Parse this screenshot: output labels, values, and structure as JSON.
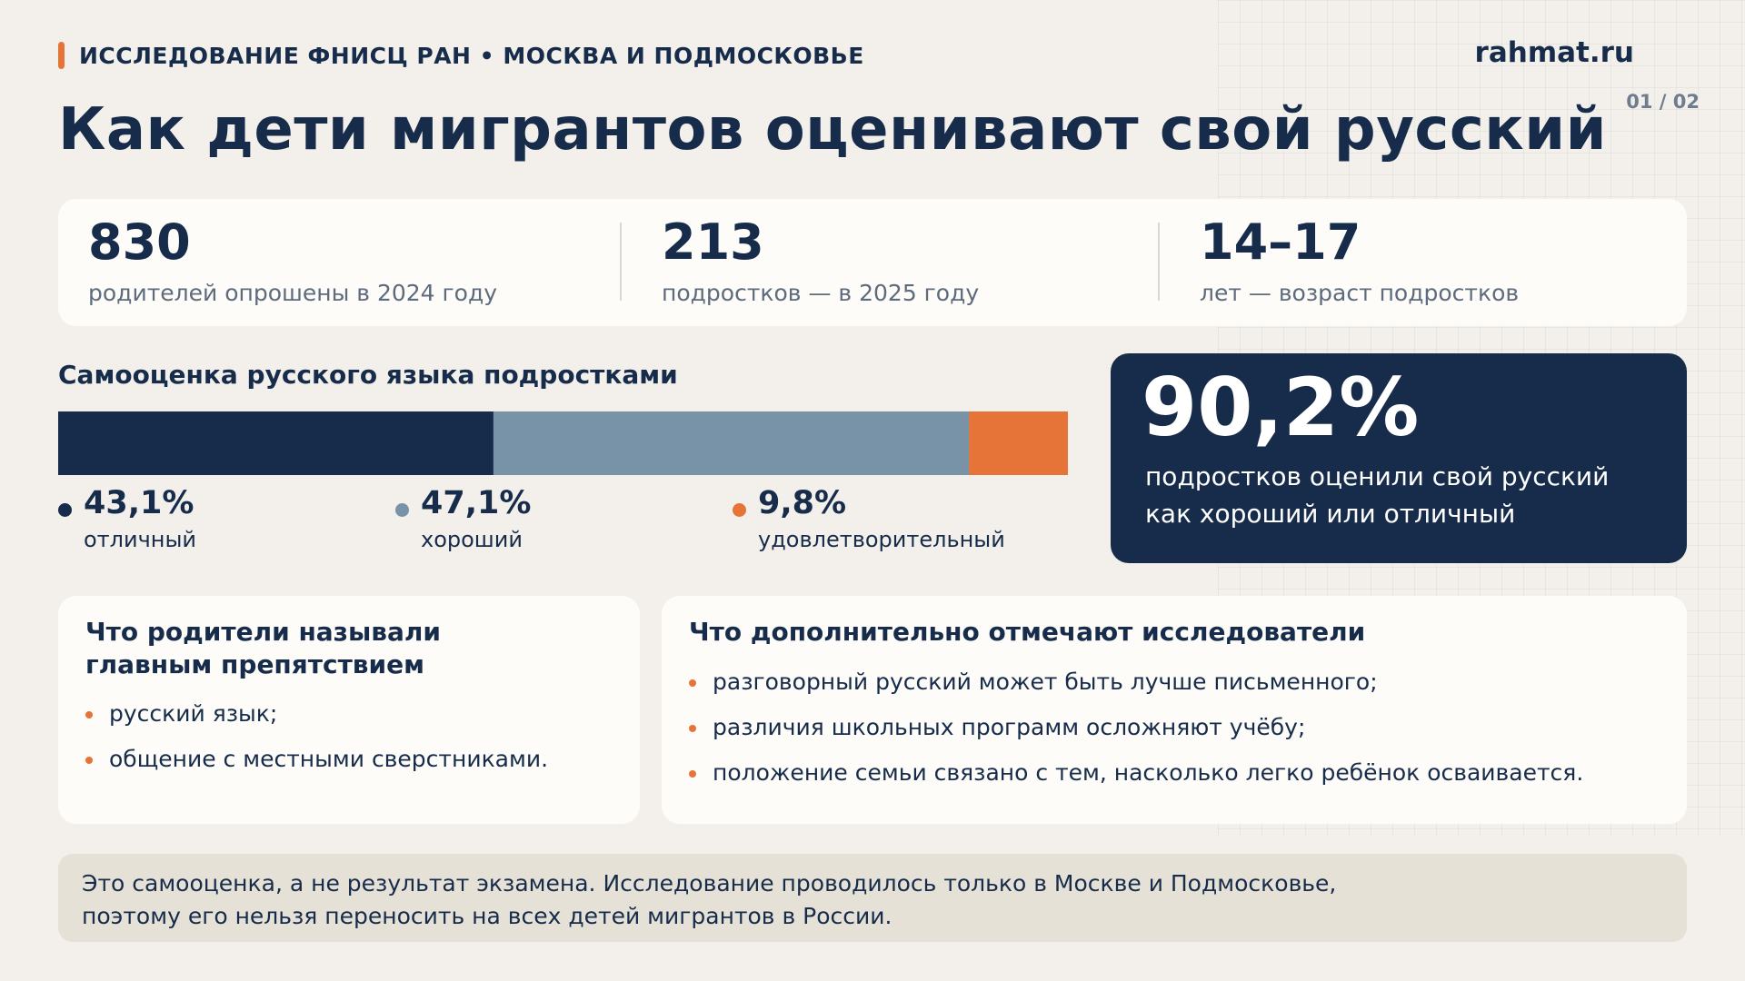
{
  "header": {
    "kicker": "ИССЛЕДОВАНИЕ ФНИСЦ РАН • МОСКВА И ПОДМОСКОВЬЕ",
    "brand": "rahmat.ru",
    "page": "01 / 02",
    "title": "Как дети мигрантов оценивают свой русский"
  },
  "stats": [
    {
      "value": "830",
      "label": "родителей опрошены в 2024 году"
    },
    {
      "value": "213",
      "label": "подростков — в 2025 году"
    },
    {
      "value": "14–17",
      "label": "лет — возраст подростков"
    }
  ],
  "chart_data": {
    "type": "bar",
    "orientation": "horizontal-stacked",
    "title": "Самооценка русского языка подростками",
    "categories": [
      "отличный",
      "хороший",
      "удовлетворительный"
    ],
    "values": [
      43.1,
      47.1,
      9.8
    ],
    "value_labels": [
      "43,1%",
      "47,1%",
      "9,8%"
    ],
    "colors": [
      "#172c4b",
      "#7892a8",
      "#e67438"
    ],
    "unit": "%",
    "xlim": [
      0,
      100
    ],
    "grid": false,
    "legend": "bottom"
  },
  "highlight": {
    "value": "90,2%",
    "line1": "подростков оценили свой русский",
    "line2": "как хороший или отличный"
  },
  "parents_card": {
    "title_line1": "Что родители называли",
    "title_line2": "главным препятствием",
    "items": [
      "русский язык;",
      "общение с местными сверстниками."
    ]
  },
  "researchers_card": {
    "title": "Что дополнительно отмечают исследователи",
    "items": [
      "разговорный русский может быть лучше письменного;",
      "различия школьных программ осложняют учёбу;",
      "положение семьи связано с тем, насколько легко ребёнок осваивается."
    ]
  },
  "note": {
    "line1": "Это самооценка, а не результат экзамена. Исследование проводилось только в Москве и Подмосковье,",
    "line2": "поэтому его нельзя переносить на всех детей мигрантов в России."
  }
}
